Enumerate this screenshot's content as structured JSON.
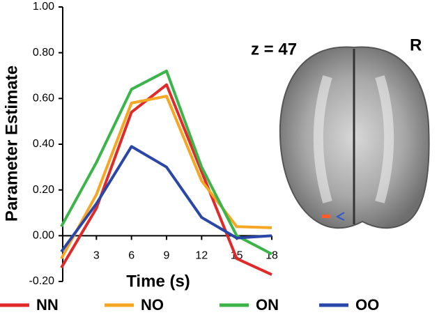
{
  "chart_data": {
    "type": "line",
    "x_label": "Time (s)",
    "y_label": "Parameter Estimate",
    "annotations": [
      "z = 47",
      "R"
    ],
    "x": [
      0,
      3,
      6,
      9,
      12,
      15,
      18
    ],
    "xlim": [
      0,
      18
    ],
    "xticks": [
      3,
      6,
      9,
      12,
      15,
      18
    ],
    "ylim": [
      -0.2,
      1.0
    ],
    "yticks": [
      {
        "value": -0.2,
        "label": "-0.20"
      },
      {
        "value": 0,
        "label": "0.00"
      },
      {
        "value": 0.2,
        "label": "0.20"
      },
      {
        "value": 0.4,
        "label": "0.40"
      },
      {
        "value": 0.6,
        "label": "0.60"
      },
      {
        "value": 0.8,
        "label": "0.80"
      },
      {
        "value": 1.0,
        "label": "1.00"
      }
    ],
    "legend": "bottom",
    "series": [
      {
        "name": "NN",
        "color": "#e02a2a",
        "values": [
          -0.14,
          0.12,
          0.54,
          0.66,
          0.28,
          -0.1,
          -0.17
        ]
      },
      {
        "name": "NO",
        "color": "#f5a623",
        "values": [
          -0.1,
          0.18,
          0.58,
          0.61,
          0.24,
          0.04,
          0.035
        ]
      },
      {
        "name": "ON",
        "color": "#3bb54a",
        "values": [
          0.04,
          0.32,
          0.64,
          0.72,
          0.3,
          0.0,
          -0.08
        ]
      },
      {
        "name": "OO",
        "color": "#2a47a8",
        "values": [
          -0.07,
          0.14,
          0.39,
          0.3,
          0.08,
          -0.01,
          0.0
        ]
      }
    ]
  }
}
